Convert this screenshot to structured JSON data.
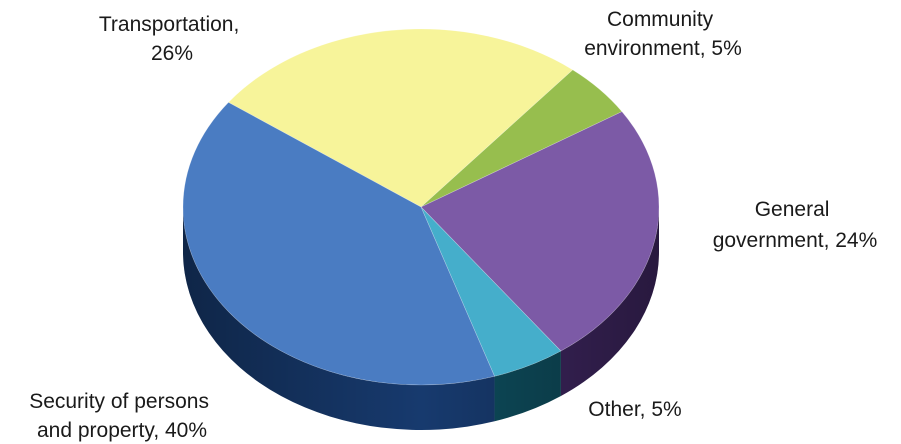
{
  "chart_data": {
    "type": "pie",
    "title": "",
    "style": "3d-exploded-none",
    "slices": [
      {
        "label_lines": [
          "Transportation,",
          "26%"
        ],
        "name": "Transportation",
        "value": 26,
        "color": "#F7F49A",
        "side_color": "#BDB95A"
      },
      {
        "label_lines": [
          "Community",
          "environment,  5%"
        ],
        "name": "Community environment",
        "value": 5,
        "color": "#97BE4E",
        "side_color": "#5E7E22"
      },
      {
        "label_lines": [
          "General",
          "government,  24%"
        ],
        "name": "General government",
        "value": 24,
        "color": "#7C5AA6",
        "side_color": "#3E2660"
      },
      {
        "label_lines": [
          "Other,  5%"
        ],
        "name": "Other",
        "value": 5,
        "color": "#45AECB",
        "side_color": "#0E4C5C"
      },
      {
        "label_lines": [
          "Security of persons",
          "and property,  40%"
        ],
        "name": "Security of persons and property",
        "value": 40,
        "color": "#4A7CC2",
        "side_color": "#173A6E"
      }
    ]
  }
}
